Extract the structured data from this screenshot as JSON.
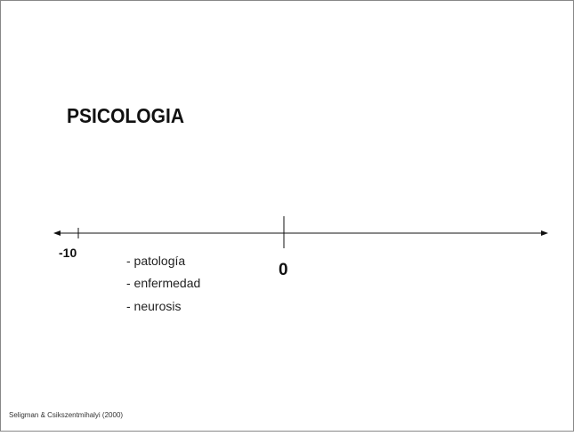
{
  "title": "PSICOLOGIA",
  "axis": {
    "left_label": "-10",
    "center_label": "0"
  },
  "items": [
    "- patología",
    "- enfermedad",
    "- neurosis"
  ],
  "footer": "Seligman & Csikszentmihalyi (2000)"
}
